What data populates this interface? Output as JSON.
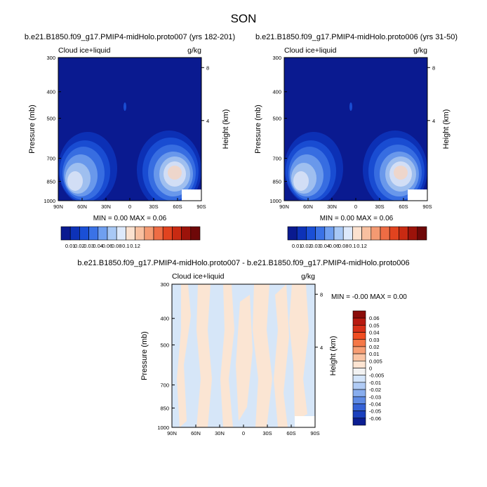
{
  "figure": {
    "title": "SON"
  },
  "chart_data": [
    {
      "type": "heatmap",
      "title": "b.e21.B1850.f09_g17.PMIP4-midHolo.proto007 (yrs 182-201)",
      "subtitle_left": "Cloud ice+liquid",
      "subtitle_right": "g/kg",
      "ylabel": "Pressure (mb)",
      "ylabel_right": "Height (km)",
      "x_ticks": [
        "90N",
        "60N",
        "30N",
        "0",
        "30S",
        "60S",
        "90S"
      ],
      "y_ticks": [
        "300",
        "400",
        "500",
        "700",
        "850",
        "1000"
      ],
      "y_ticks_right": [
        "8",
        "4"
      ],
      "ylim": [
        1000,
        300
      ],
      "stats_text": "MIN =  0.00   MAX =  0.06",
      "min": 0.0,
      "max": 0.06
    },
    {
      "type": "heatmap",
      "title": "b.e21.B1850.f09_g17.PMIP4-midHolo.proto006 (yrs 31-50)",
      "subtitle_left": "Cloud ice+liquid",
      "subtitle_right": "g/kg",
      "ylabel": "Pressure (mb)",
      "ylabel_right": "Height (km)",
      "x_ticks": [
        "90N",
        "60N",
        "30N",
        "0",
        "30S",
        "60S",
        "90S"
      ],
      "y_ticks": [
        "300",
        "400",
        "500",
        "700",
        "850",
        "1000"
      ],
      "y_ticks_right": [
        "8",
        "4"
      ],
      "ylim": [
        1000,
        300
      ],
      "stats_text": "MIN =  0.00   MAX =  0.06",
      "min": 0.0,
      "max": 0.06
    },
    {
      "type": "heatmap",
      "title": "b.e21.B1850.f09_g17.PMIP4-midHolo.proto007 - b.e21.B1850.f09_g17.PMIP4-midHolo.proto006",
      "subtitle_left": "Cloud ice+liquid",
      "subtitle_right": "g/kg",
      "ylabel": "Pressure (mb)",
      "ylabel_right": "Height (km)",
      "x_ticks": [
        "90N",
        "60N",
        "30N",
        "0",
        "30S",
        "60S",
        "90S"
      ],
      "y_ticks": [
        "300",
        "400",
        "500",
        "700",
        "850",
        "1000"
      ],
      "y_ticks_right": [
        "8",
        "4"
      ],
      "ylim": [
        1000,
        300
      ],
      "stats_text": "MIN = -0.00   MAX =  0.00",
      "min": -0.0,
      "max": 0.0
    }
  ],
  "colorbars": {
    "top": {
      "labels": [
        "0.01",
        "0.02",
        "0.03",
        "0.04",
        "0.06",
        "0.08",
        "0.1",
        "0.12"
      ],
      "colors": [
        "#0a1a90",
        "#0d32b8",
        "#1a4fd6",
        "#3a72e6",
        "#6f9ff0",
        "#a8c8f5",
        "#dde9fb",
        "#fbe1cf",
        "#f8c0a0",
        "#f49a72",
        "#ee6c44",
        "#e1431f",
        "#c82a12",
        "#9c130a",
        "#6e0808"
      ]
    },
    "diff": {
      "labels": [
        "0.06",
        "0.05",
        "0.04",
        "0.03",
        "0.02",
        "0.01",
        "0.005",
        "0",
        "-0.005",
        "-0.01",
        "-0.02",
        "-0.03",
        "-0.04",
        "-0.05",
        "-0.06"
      ],
      "colors": [
        "#8b0d0a",
        "#b81a10",
        "#d83018",
        "#f04e22",
        "#f57848",
        "#f79e74",
        "#fac4a4",
        "#fde4d2",
        "#f2f2f2",
        "#d3e4fa",
        "#b0cbf5",
        "#88adee",
        "#5e8ae4",
        "#3562d6",
        "#1b40bd",
        "#0c1e92"
      ]
    }
  }
}
